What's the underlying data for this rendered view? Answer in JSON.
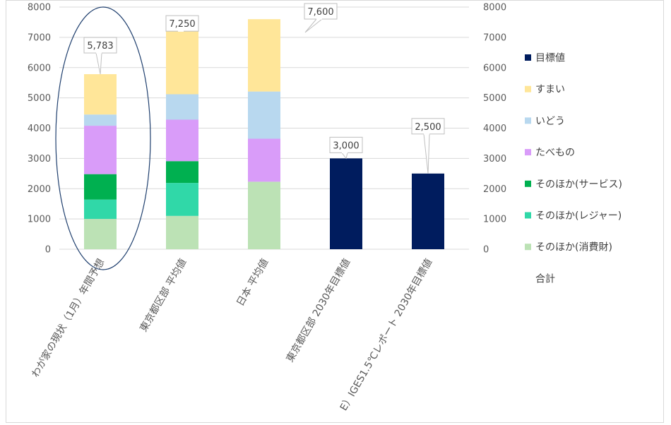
{
  "chart_data": {
    "type": "bar",
    "stacked": true,
    "categories": [
      "わが家の現状（1月）年間予想",
      "東京都区部 平均値",
      "日本 平均値",
      "東京都区部 2030年目標値",
      "E）IGES1.5℃レポート 2030年目標値"
    ],
    "series": [
      {
        "name": "そのほか(消費財)",
        "color": "#bce2b5",
        "values": [
          1000,
          1100,
          2230,
          0,
          0
        ]
      },
      {
        "name": "そのほか(レジャー)",
        "color": "#30d8a8",
        "values": [
          640,
          1090,
          0,
          0,
          0
        ]
      },
      {
        "name": "そのほか(サービス)",
        "color": "#00b050",
        "values": [
          840,
          720,
          0,
          0,
          0
        ]
      },
      {
        "name": "たべもの",
        "color": "#d99cf9",
        "values": [
          1600,
          1370,
          1420,
          0,
          0
        ]
      },
      {
        "name": "いどう",
        "color": "#b8d8ef",
        "values": [
          370,
          840,
          1560,
          0,
          0
        ]
      },
      {
        "name": "すまい",
        "color": "#ffe699",
        "values": [
          1333,
          2130,
          2390,
          0,
          0
        ]
      },
      {
        "name": "目標値",
        "color": "#001c5e",
        "values": [
          0,
          0,
          0,
          3000,
          2500
        ]
      }
    ],
    "totals_name": "合計",
    "totals": [
      "5,783",
      "7,250",
      "7,600",
      "3,000",
      "2,500"
    ],
    "ylim": [
      0,
      8000
    ],
    "yticks": [
      "0",
      "1000",
      "2000",
      "3000",
      "4000",
      "5000",
      "6000",
      "7000",
      "8000"
    ],
    "secondary_ylim": [
      0,
      8000
    ],
    "grid": true,
    "legend_position": "right",
    "legend_order": [
      "目標値",
      "すまい",
      "いどう",
      "たべもの",
      "そのほか(サービス)",
      "そのほか(レジャー)",
      "そのほか(消費財)",
      "合計"
    ]
  }
}
